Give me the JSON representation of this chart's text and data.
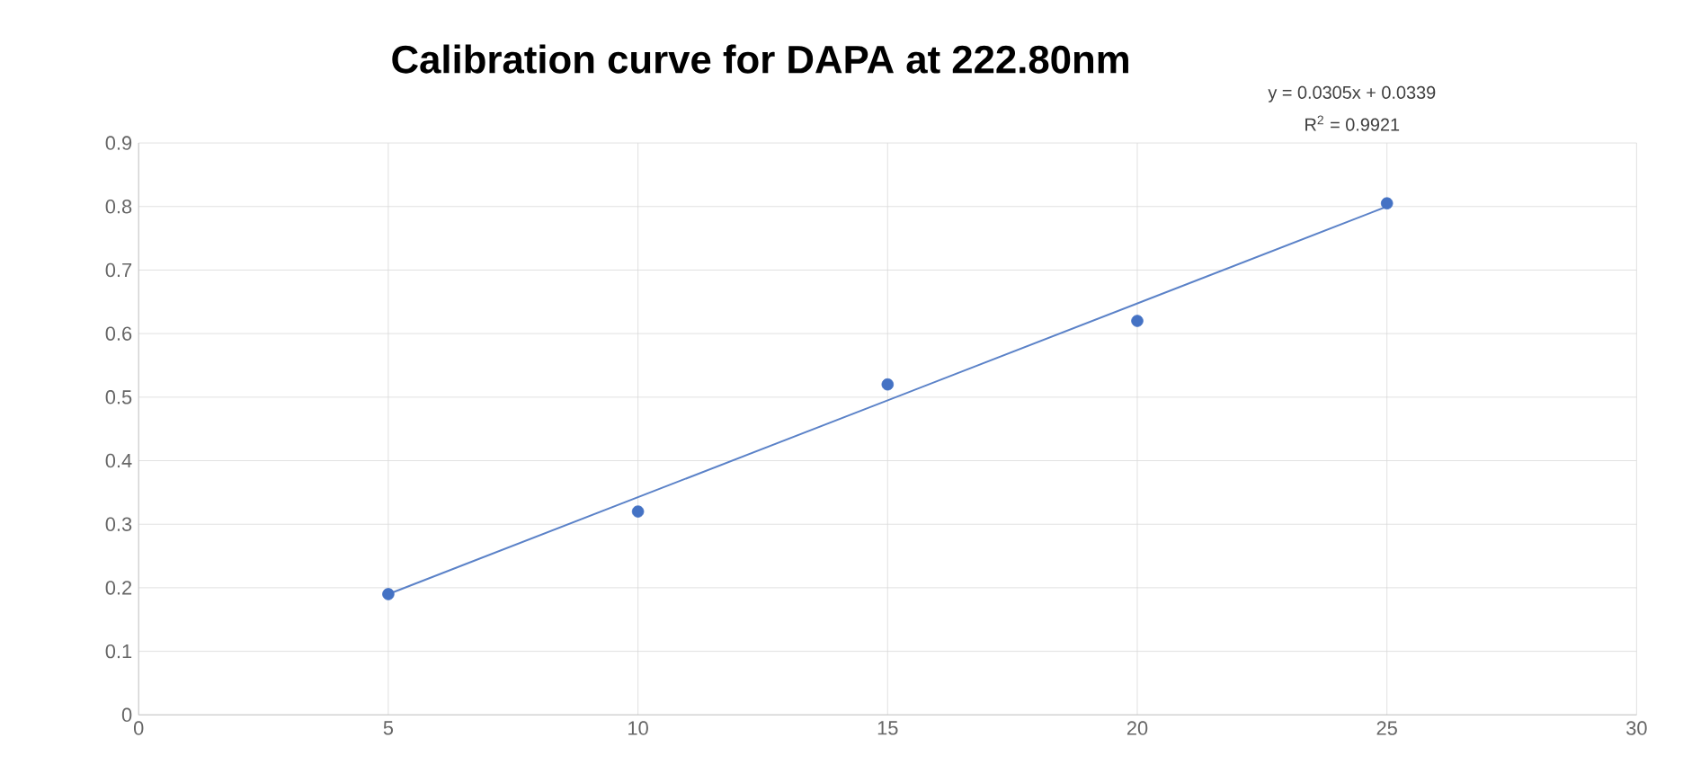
{
  "chart_data": {
    "type": "scatter",
    "title": "Calibration curve for DAPA at 222.80nm",
    "x": [
      5,
      10,
      15,
      20,
      25
    ],
    "series": [
      {
        "color": "#4472c4",
        "marker": "circle",
        "values": [
          0.19,
          0.32,
          0.52,
          0.62,
          0.805
        ]
      },
      {
        "type": "line",
        "color": "#5b82c8",
        "marker": "none",
        "x": [
          5,
          25
        ],
        "values": [
          0.19,
          0.8
        ]
      }
    ],
    "xlim": [
      0,
      30
    ],
    "xticks": [
      0,
      5,
      10,
      15,
      20,
      25,
      30
    ],
    "ylim": [
      0,
      0.9
    ],
    "yticks": [
      0,
      0.1,
      0.2,
      0.3,
      0.4,
      0.5,
      0.6,
      0.7,
      0.8,
      0.9
    ],
    "grid": true,
    "annotations": [
      "y = 0.0305x + 0.0339",
      "R$^{2}$ = 0.9921"
    ]
  }
}
